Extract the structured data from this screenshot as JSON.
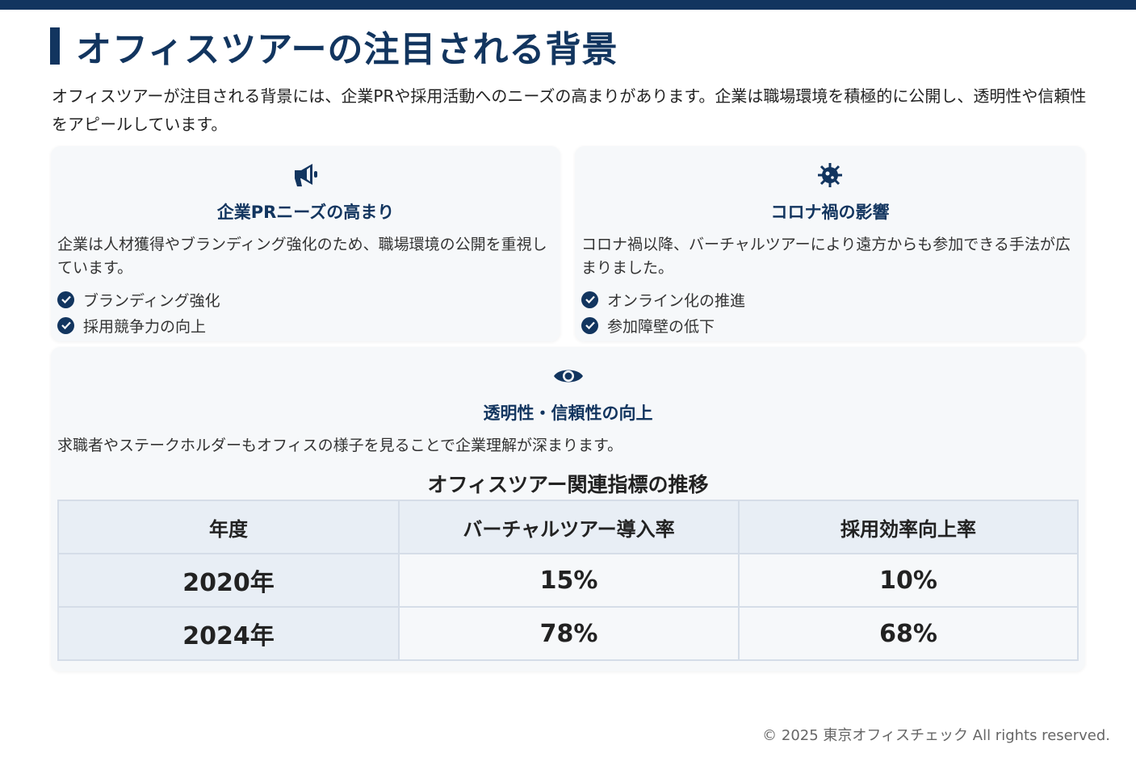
{
  "header": {
    "title": "オフィスツアーの注目される背景",
    "accent": "#12355f"
  },
  "intro": "オフィスツアーが注目される背景には、企業PRや採用活動へのニーズの高まりがあります。企業は職場環境を積極的に公開し、透明性や信頼性をアピールしています。",
  "cards": [
    {
      "icon": "megaphone-icon",
      "title": "企業PRニーズの高まり",
      "desc": "企業は人材獲得やブランディング強化のため、職場環境の公開を重視しています。",
      "items": [
        "ブランディング強化",
        "採用競争力の向上"
      ]
    },
    {
      "icon": "virus-icon",
      "title": "コロナ禍の影響",
      "desc": "コロナ禍以降、バーチャルツアーにより遠方からも参加できる手法が広まりました。",
      "items": [
        "オンライン化の推進",
        "参加障壁の低下"
      ]
    },
    {
      "icon": "eye-icon",
      "title": "透明性・信頼性の向上",
      "desc": "求職者やステークホルダーもオフィスの様子を見ることで企業理解が深まります。"
    }
  ],
  "table": {
    "title": "オフィスツアー関連指標の推移",
    "headers": [
      "年度",
      "バーチャルツアー導入率",
      "採用効率向上率"
    ],
    "rows": [
      [
        "2020年",
        "15%",
        "10%"
      ],
      [
        "2024年",
        "78%",
        "68%"
      ]
    ]
  },
  "footer": "© 2025 東京オフィスチェック All rights reserved."
}
